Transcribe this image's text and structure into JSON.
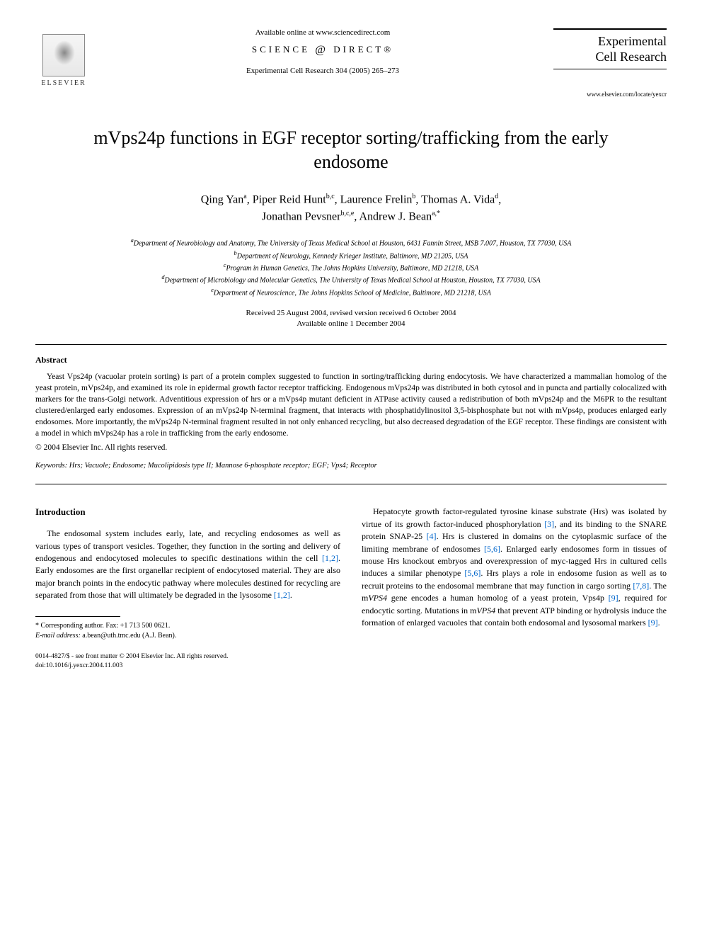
{
  "header": {
    "available_online": "Available online at www.sciencedirect.com",
    "science_direct_left": "SCIENCE",
    "science_direct_right": "DIRECT®",
    "journal_ref": "Experimental Cell Research 304 (2005) 265–273",
    "elsevier_label": "ELSEVIER",
    "journal_name_line1": "Experimental",
    "journal_name_line2": "Cell Research",
    "journal_url": "www.elsevier.com/locate/yexcr"
  },
  "title": "mVps24p functions in EGF receptor sorting/trafficking from the early endosome",
  "authors": {
    "a1_name": "Qing Yan",
    "a1_sup": "a",
    "a2_name": "Piper Reid Hunt",
    "a2_sup": "b,c",
    "a3_name": "Laurence Frelin",
    "a3_sup": "b",
    "a4_name": "Thomas A. Vida",
    "a4_sup": "d",
    "a5_name": "Jonathan Pevsner",
    "a5_sup": "b,c,e",
    "a6_name": "Andrew J. Bean",
    "a6_sup": "a,*"
  },
  "affiliations": {
    "a": "Department of Neurobiology and Anatomy, The University of Texas Medical School at Houston, 6431 Fannin Street, MSB 7.007, Houston, TX 77030, USA",
    "b": "Department of Neurology, Kennedy Krieger Institute, Baltimore, MD 21205, USA",
    "c": "Program in Human Genetics, The Johns Hopkins University, Baltimore, MD 21218, USA",
    "d": "Department of Microbiology and Molecular Genetics, The University of Texas Medical School at Houston, Houston, TX 77030, USA",
    "e": "Department of Neuroscience, The Johns Hopkins School of Medicine, Baltimore, MD 21218, USA"
  },
  "dates": {
    "received": "Received 25 August 2004, revised version received 6 October 2004",
    "online": "Available online 1 December 2004"
  },
  "abstract": {
    "heading": "Abstract",
    "text": "Yeast Vps24p (vacuolar protein sorting) is part of a protein complex suggested to function in sorting/trafficking during endocytosis. We have characterized a mammalian homolog of the yeast protein, mVps24p, and examined its role in epidermal growth factor receptor trafficking. Endogenous mVps24p was distributed in both cytosol and in puncta and partially colocalized with markers for the trans-Golgi network. Adventitious expression of hrs or a mVps4p mutant deficient in ATPase activity caused a redistribution of both mVps24p and the M6PR to the resultant clustered/enlarged early endosomes. Expression of an mVps24p N-terminal fragment, that interacts with phosphatidylinositol 3,5-bisphosphate but not with mVps4p, produces enlarged early endosomes. More importantly, the mVps24p N-terminal fragment resulted in not only enhanced recycling, but also decreased degradation of the EGF receptor. These findings are consistent with a model in which mVps24p has a role in trafficking from the early endosome.",
    "copyright": "© 2004 Elsevier Inc. All rights reserved."
  },
  "keywords": {
    "label": "Keywords:",
    "list": "Hrs; Vacuole; Endosome; Mucolipidosis type II; Mannose 6-phosphate receptor; EGF; Vps4; Receptor"
  },
  "intro": {
    "heading": "Introduction",
    "p1_a": "The endosomal system includes early, late, and recycling endosomes as well as various types of transport vesicles. Together, they function in the sorting and delivery of endogenous and endocytosed molecules to specific destinations within the cell ",
    "p1_ref1": "[1,2]",
    "p1_b": ". Early endosomes are the first organellar recipient of endocytosed material. They are also major branch points in the endocytic pathway where molecules destined for recycling are separated from those that will ultimately be degraded in the lysosome ",
    "p1_ref2": "[1,2]",
    "p1_c": ".",
    "p2_a": "Hepatocyte growth factor-regulated tyrosine kinase substrate (Hrs) was isolated by virtue of its growth factor-induced phosphorylation ",
    "p2_ref1": "[3]",
    "p2_b": ", and its binding to the SNARE protein SNAP-25 ",
    "p2_ref2": "[4]",
    "p2_c": ". Hrs is clustered in domains on the cytoplasmic surface of the limiting membrane of endosomes ",
    "p2_ref3": "[5,6]",
    "p2_d": ". Enlarged early endosomes form in tissues of mouse Hrs knockout embryos and overexpression of myc-tagged Hrs in cultured cells induces a similar phenotype ",
    "p2_ref4": "[5,6]",
    "p2_e": ". Hrs plays a role in endosome fusion as well as to recruit proteins to the endosomal membrane that may function in cargo sorting ",
    "p2_ref5": "[7,8]",
    "p2_f": ". The m",
    "p2_gene1": "VPS4",
    "p2_g": " gene encodes a human homolog of a yeast protein, Vps4p ",
    "p2_ref6": "[9]",
    "p2_h": ", required for endocytic sorting. Mutations in m",
    "p2_gene2": "VPS4",
    "p2_i": " that prevent ATP binding or hydrolysis induce the formation of enlarged vacuoles that contain both endosomal and lysosomal markers ",
    "p2_ref7": "[9]",
    "p2_j": "."
  },
  "footnotes": {
    "corresponding": "* Corresponding author. Fax: +1 713 500 0621.",
    "email_label": "E-mail address:",
    "email": "a.bean@uth.tmc.edu (A.J. Bean)."
  },
  "footer": {
    "line1": "0014-4827/$ - see front matter © 2004 Elsevier Inc. All rights reserved.",
    "line2": "doi:10.1016/j.yexcr.2004.11.003"
  },
  "colors": {
    "link": "#0066cc",
    "text": "#000000",
    "bg": "#ffffff"
  }
}
